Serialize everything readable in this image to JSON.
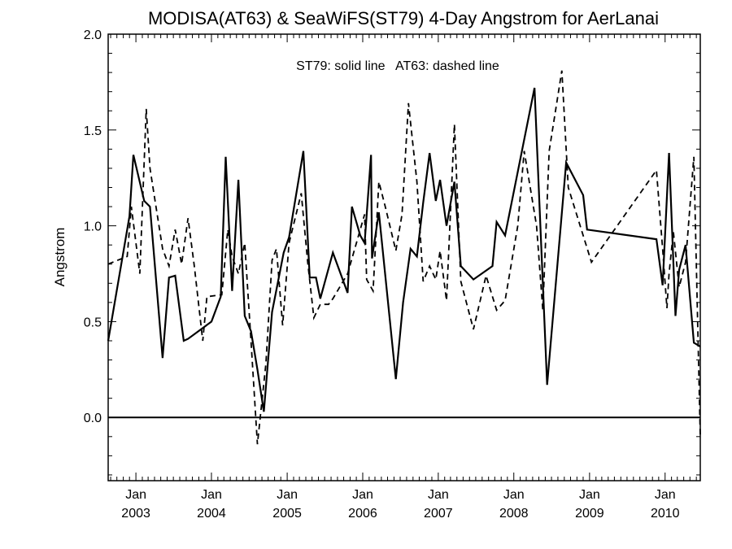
{
  "chart_data": {
    "type": "line",
    "title": "MODISA(AT63) & SeaWiFS(ST79) 4-Day Angstrom for AerLanai",
    "xlabel": "",
    "ylabel": "Angstrom",
    "annotation": "ST79: solid line   AT63: dashed line",
    "xlim": [
      "2002-08-20",
      "2010-06-20"
    ],
    "ylim": [
      -0.33,
      2.0
    ],
    "y_ticks": [
      "0.0",
      "0.5",
      "1.0",
      "1.5",
      "2.0"
    ],
    "x_ticks": [
      {
        "month": "Jan",
        "year": "2003"
      },
      {
        "month": "Jan",
        "year": "2004"
      },
      {
        "month": "Jan",
        "year": "2005"
      },
      {
        "month": "Jan",
        "year": "2006"
      },
      {
        "month": "Jan",
        "year": "2007"
      },
      {
        "month": "Jan",
        "year": "2008"
      },
      {
        "month": "Jan",
        "year": "2009"
      },
      {
        "month": "Jan",
        "year": "2010"
      }
    ],
    "reference_line": 0.0,
    "series": [
      {
        "name": "ST79",
        "style": "solid",
        "color": "#000000",
        "x": [
          "2002-08-20",
          "2002-12-01",
          "2002-12-20",
          "2003-02-10",
          "2003-03-10",
          "2003-05-10",
          "2003-06-10",
          "2003-07-10",
          "2003-08-20",
          "2003-09-10",
          "2004-01-01",
          "2004-02-15",
          "2004-03-10",
          "2004-04-10",
          "2004-05-10",
          "2004-06-10",
          "2004-07-10",
          "2004-08-10",
          "2004-09-10",
          "2004-10-20",
          "2004-12-15",
          "2005-01-10",
          "2005-03-20",
          "2005-04-20",
          "2005-05-20",
          "2005-06-10",
          "2005-08-10",
          "2005-10-20",
          "2005-11-10",
          "2005-12-20",
          "2006-01-10",
          "2006-02-10",
          "2006-02-15",
          "2006-03-20",
          "2006-06-10",
          "2006-07-15",
          "2006-08-20",
          "2006-09-20",
          "2006-10-20",
          "2006-11-20",
          "2006-12-20",
          "2007-01-10",
          "2007-02-10",
          "2007-03-20",
          "2007-04-20",
          "2007-06-20",
          "2007-09-20",
          "2007-10-10",
          "2007-11-20",
          "2008-04-10",
          "2008-06-10",
          "2008-09-10",
          "2008-12-01",
          "2008-12-20",
          "2009-11-20",
          "2009-12-20",
          "2010-01-20",
          "2010-02-20",
          "2010-03-10",
          "2010-04-10",
          "2010-05-20",
          "2010-06-20"
        ],
        "y": [
          0.4,
          1.05,
          1.37,
          1.13,
          1.1,
          0.31,
          0.73,
          0.74,
          0.4,
          0.41,
          0.5,
          0.63,
          1.36,
          0.66,
          1.24,
          0.53,
          0.45,
          0.25,
          0.03,
          0.55,
          0.86,
          0.94,
          1.39,
          0.73,
          0.73,
          0.62,
          0.86,
          0.65,
          1.1,
          0.95,
          0.91,
          1.37,
          0.83,
          1.07,
          0.2,
          0.6,
          0.88,
          0.84,
          1.12,
          1.38,
          1.13,
          1.24,
          1.0,
          1.23,
          0.79,
          0.72,
          0.79,
          1.02,
          0.95,
          1.72,
          0.17,
          1.33,
          1.16,
          0.98,
          0.93,
          0.69,
          1.38,
          0.53,
          0.77,
          0.9,
          0.39,
          0.37
        ]
      },
      {
        "name": "AT63",
        "style": "dashed",
        "color": "#000000",
        "x": [
          "2002-08-20",
          "2002-11-20",
          "2002-12-10",
          "2003-01-20",
          "2003-02-20",
          "2003-03-10",
          "2003-05-10",
          "2003-06-10",
          "2003-07-10",
          "2003-08-10",
          "2003-09-10",
          "2003-10-10",
          "2003-11-20",
          "2003-12-10",
          "2004-02-20",
          "2004-03-20",
          "2004-04-10",
          "2004-05-10",
          "2004-06-10",
          "2004-07-10",
          "2004-08-10",
          "2004-09-20",
          "2004-10-20",
          "2004-11-10",
          "2004-12-10",
          "2005-01-10",
          "2005-03-10",
          "2005-04-10",
          "2005-05-10",
          "2005-06-10",
          "2005-07-20",
          "2005-08-10",
          "2005-10-20",
          "2006-01-10",
          "2006-01-20",
          "2006-02-20",
          "2006-03-20",
          "2006-04-20",
          "2006-06-10",
          "2006-07-10",
          "2006-08-10",
          "2006-09-20",
          "2006-10-20",
          "2006-11-20",
          "2006-12-20",
          "2007-01-10",
          "2007-02-10",
          "2007-03-20",
          "2007-04-20",
          "2007-06-20",
          "2007-08-20",
          "2007-10-10",
          "2007-11-20",
          "2008-01-20",
          "2008-02-20",
          "2008-04-20",
          "2008-05-20",
          "2008-06-20",
          "2008-08-20",
          "2008-09-20",
          "2009-01-10",
          "2009-11-20",
          "2009-12-20",
          "2010-01-10",
          "2010-01-20",
          "2010-02-10",
          "2010-03-10",
          "2010-04-10",
          "2010-05-20",
          "2010-06-20"
        ],
        "y": [
          0.8,
          0.84,
          1.1,
          0.75,
          1.61,
          1.3,
          0.88,
          0.79,
          0.98,
          0.8,
          1.04,
          0.79,
          0.4,
          0.63,
          0.64,
          0.98,
          0.84,
          0.75,
          0.91,
          0.4,
          -0.14,
          0.28,
          0.82,
          0.88,
          0.48,
          0.91,
          1.17,
          0.81,
          0.52,
          0.59,
          0.59,
          0.62,
          0.75,
          1.06,
          0.72,
          0.66,
          1.23,
          1.1,
          0.87,
          1.06,
          1.64,
          1.23,
          0.71,
          0.79,
          0.72,
          0.87,
          0.61,
          1.53,
          0.71,
          0.46,
          0.74,
          0.56,
          0.61,
          1.0,
          1.39,
          1.0,
          0.56,
          1.39,
          1.81,
          1.2,
          0.81,
          1.29,
          0.88,
          0.57,
          0.75,
          0.97,
          0.68,
          0.81,
          1.36,
          -0.1
        ]
      }
    ]
  }
}
